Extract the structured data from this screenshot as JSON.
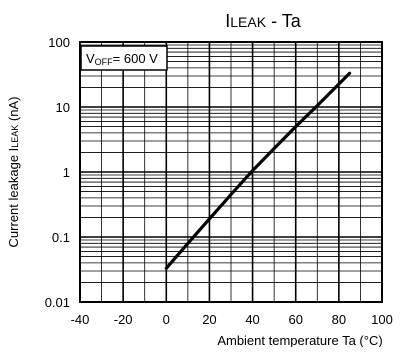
{
  "chart_data": {
    "type": "line",
    "title": {
      "main": "I",
      "sub": "LEAK",
      "rest": " - Ta"
    },
    "xlabel": "Ambient temperature Ta (°C)",
    "ylabel": {
      "main": "Current leakage I",
      "sub": "LEAK",
      "unit": " (nA)"
    },
    "annotation": {
      "main": "V",
      "sub": "OFF",
      "rest": "= 600 V"
    },
    "x_ticks": [
      "-40",
      "-20",
      "0",
      "20",
      "40",
      "60",
      "80",
      "100"
    ],
    "y_ticks": [
      "0.01",
      "0.1",
      "1",
      "10",
      "100"
    ],
    "xlim": [
      -40,
      100
    ],
    "ylim": [
      0.01,
      100
    ],
    "y_scale": "log",
    "grid": true,
    "series": [
      {
        "x": [
          0,
          10,
          20,
          30,
          40,
          50,
          60,
          70,
          85
        ],
        "y": [
          0.033,
          0.08,
          0.19,
          0.45,
          1.05,
          2.3,
          5.0,
          10.5,
          33
        ],
        "color": "#000000"
      }
    ]
  }
}
